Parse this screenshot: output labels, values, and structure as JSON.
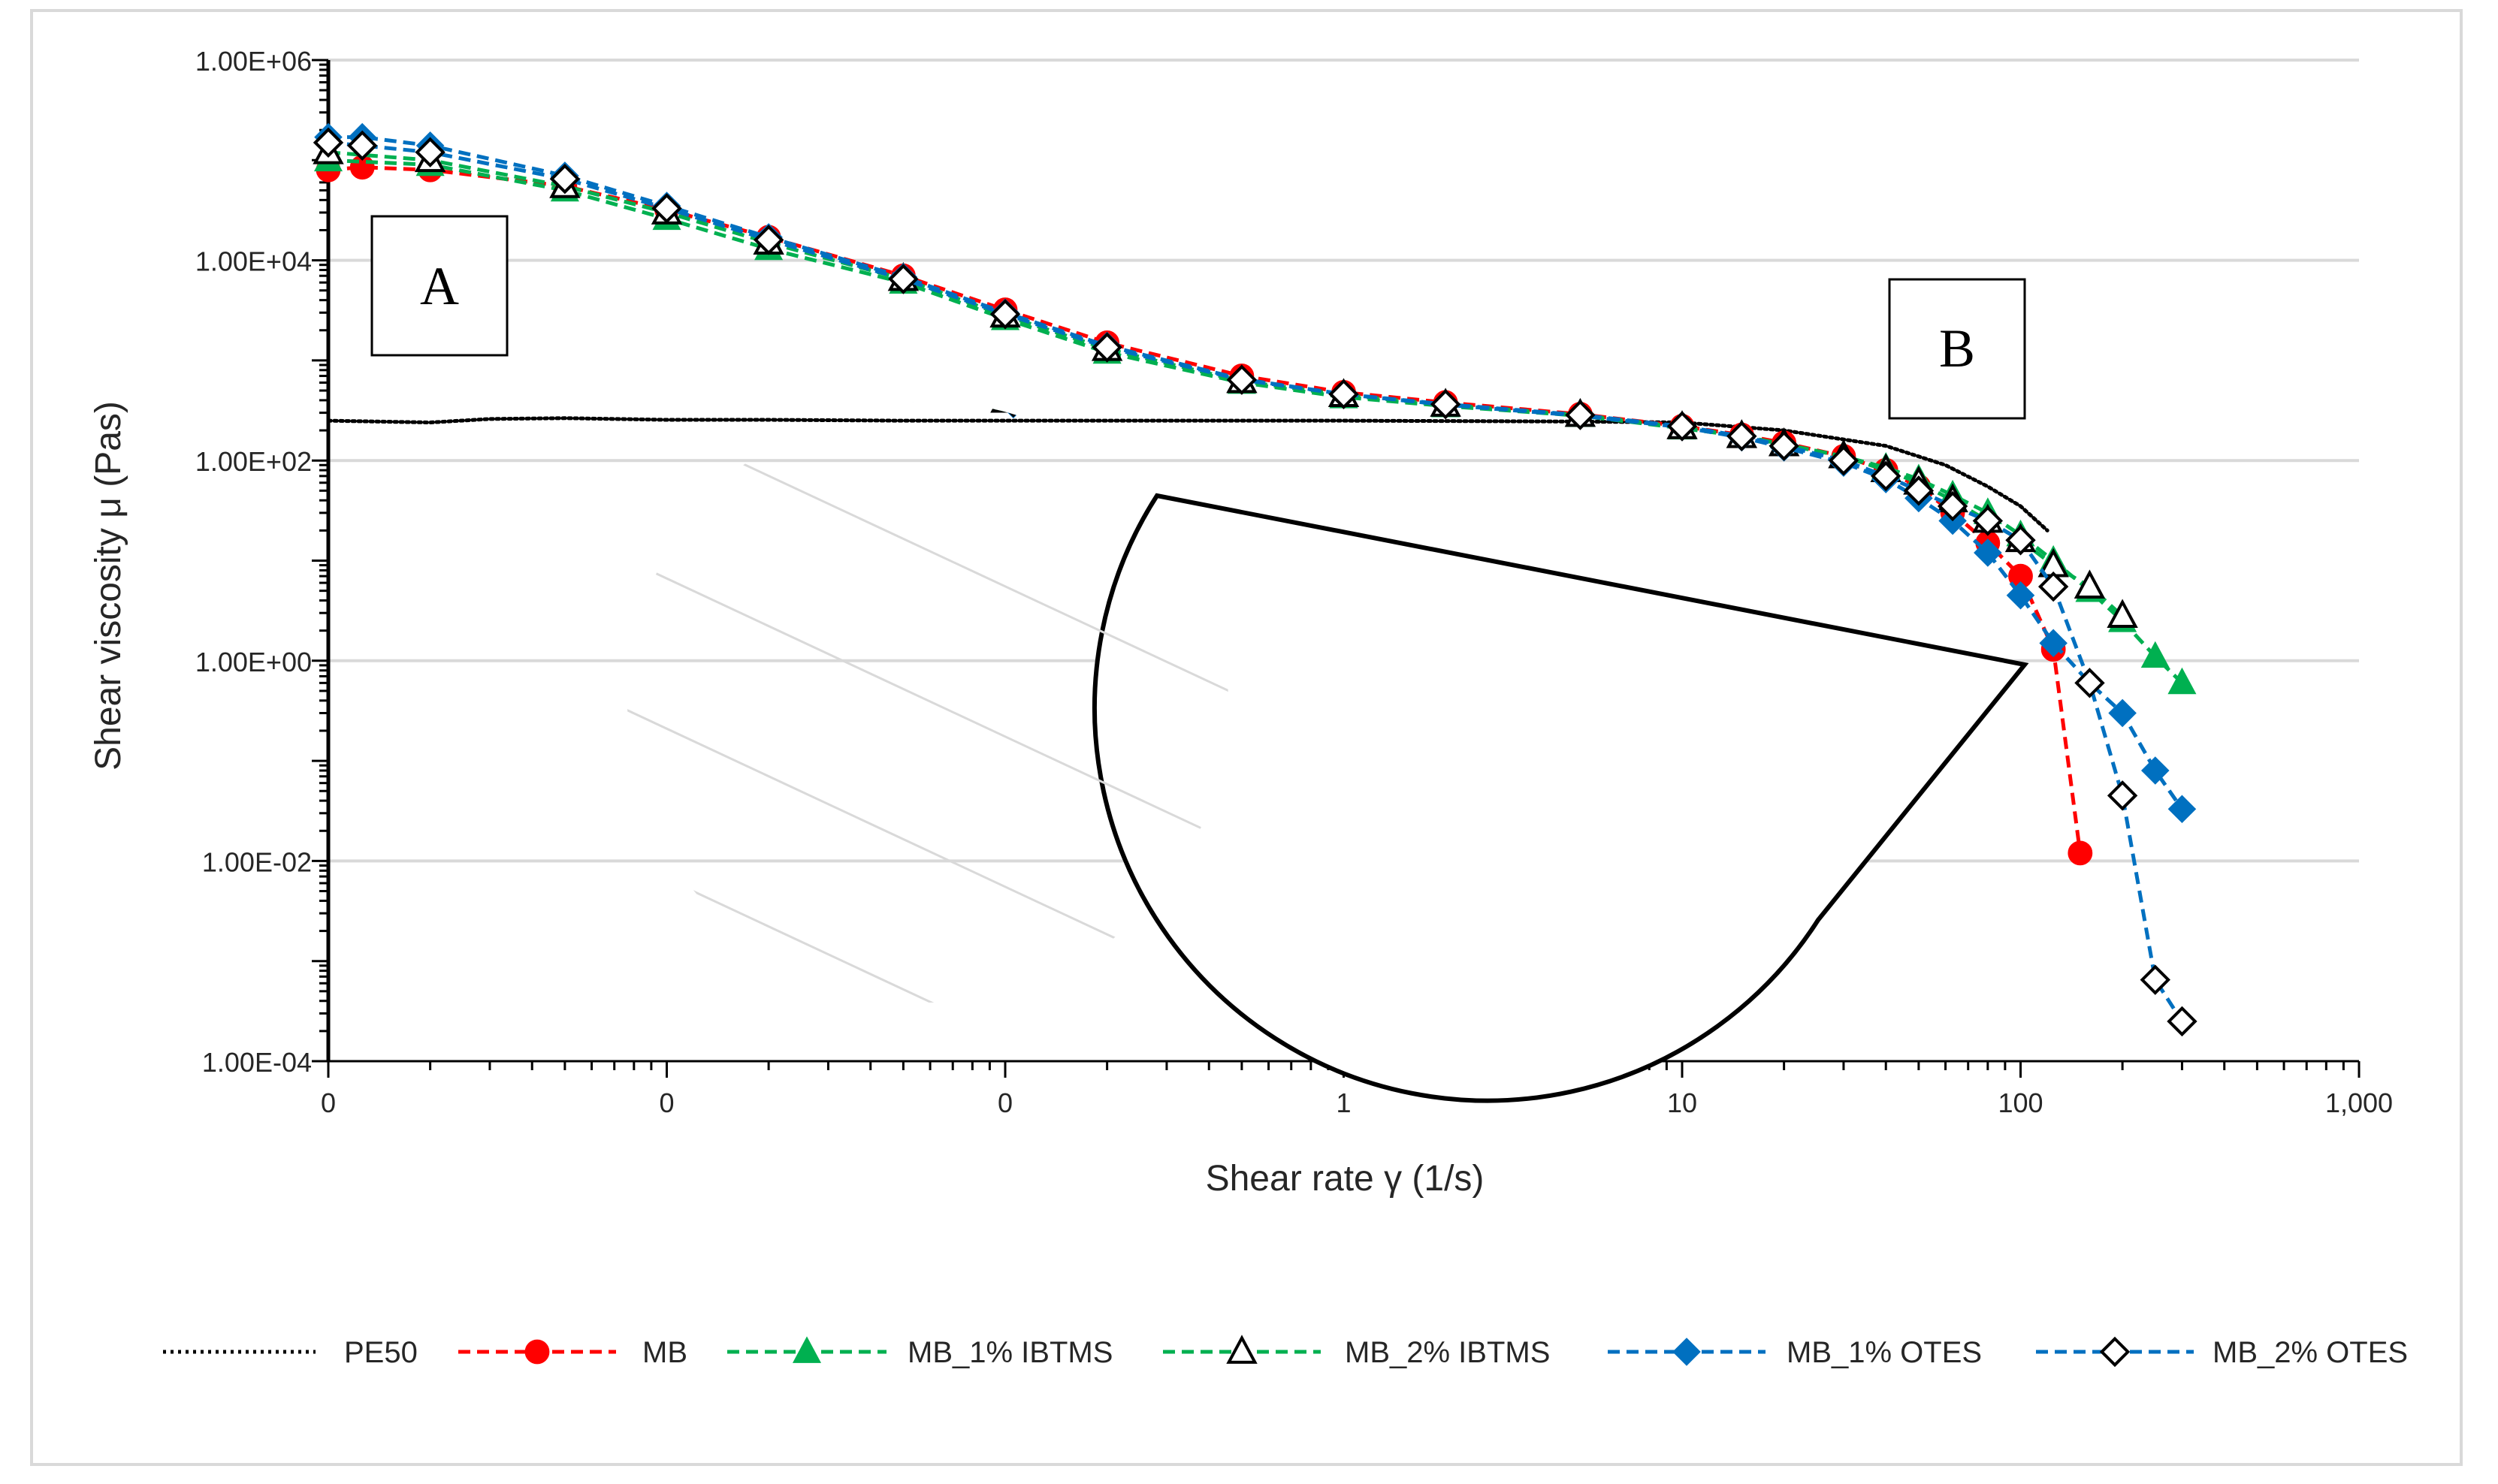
{
  "chart_data": {
    "type": "line",
    "title": "",
    "xlabel": "Shear rate γ (1/s)",
    "ylabel": "Shear viscosity μ (Pas)",
    "x_scale": "log",
    "y_scale": "log",
    "xlim": [
      0.001,
      1000
    ],
    "ylim": [
      0.0001,
      1000000
    ],
    "x_tick_labels": [
      "0",
      "0",
      "0",
      "1",
      "10",
      "100",
      "1,000"
    ],
    "y_tick_labels": [
      "1.00E-04",
      "1.00E-02",
      "1.00E+00",
      "1.00E+02",
      "1.00E+04",
      "1.00E+06"
    ],
    "annotations": [
      "A",
      "B"
    ],
    "grid": true,
    "legend_position": "bottom",
    "series": [
      {
        "name": "PE50",
        "color": "#000000",
        "marker": "none",
        "dash": "dot",
        "x": [
          0.001,
          0.002,
          0.003,
          0.005,
          0.01,
          0.02,
          0.05,
          0.1,
          0.2,
          0.5,
          1,
          2,
          5,
          10,
          20,
          40,
          60,
          80,
          100,
          120
        ],
        "y": [
          250,
          240,
          260,
          265,
          255,
          255,
          250,
          250,
          250,
          250,
          250,
          248,
          245,
          240,
          200,
          140,
          90,
          55,
          35,
          20
        ]
      },
      {
        "name": "MB",
        "color": "#ff0000",
        "marker": "circle",
        "dash": "dash",
        "x": [
          0.001,
          0.00126,
          0.002,
          0.005,
          0.01,
          0.02,
          0.05,
          0.1,
          0.2,
          0.5,
          1,
          2,
          5,
          10,
          15,
          20,
          30,
          40,
          50,
          63,
          80,
          100,
          125,
          150
        ],
        "y": [
          80000,
          85000,
          80000,
          55000,
          32000,
          17000,
          7000,
          3200,
          1500,
          700,
          480,
          380,
          290,
          220,
          180,
          150,
          110,
          80,
          55,
          30,
          15,
          7,
          1.3,
          0.012
        ]
      },
      {
        "name": "MB_1% IBTMS",
        "color": "#00b050",
        "marker": "triangle",
        "dash": "dash",
        "x": [
          0.001,
          0.002,
          0.005,
          0.01,
          0.02,
          0.05,
          0.1,
          0.2,
          0.5,
          1,
          2,
          5,
          10,
          15,
          20,
          30,
          40,
          50,
          63,
          80,
          100,
          125,
          160,
          200,
          250,
          300
        ],
        "y": [
          100000,
          90000,
          50000,
          26000,
          13000,
          6000,
          2600,
          1200,
          600,
          430,
          350,
          280,
          210,
          175,
          145,
          110,
          85,
          65,
          45,
          30,
          18,
          10,
          5,
          2.5,
          1.1,
          0.6
        ]
      },
      {
        "name": "MB_2% IBTMS",
        "color": "#00b050",
        "marker": "triangle-open",
        "dash": "dash",
        "x": [
          0.001,
          0.002,
          0.005,
          0.01,
          0.02,
          0.05,
          0.1,
          0.2,
          0.5,
          1,
          2,
          5,
          10,
          15,
          20,
          30,
          40,
          50,
          63,
          80,
          100,
          125,
          160,
          200
        ],
        "y": [
          120000,
          100000,
          55000,
          30000,
          15000,
          6500,
          2800,
          1300,
          620,
          450,
          360,
          285,
          215,
          175,
          145,
          110,
          80,
          60,
          40,
          25,
          16,
          9,
          5.5,
          2.8
        ]
      },
      {
        "name": "MB_1% OTES",
        "color": "#0070c0",
        "marker": "diamond",
        "dash": "dash",
        "x": [
          0.001,
          0.00126,
          0.002,
          0.005,
          0.01,
          0.02,
          0.05,
          0.1,
          0.2,
          0.5,
          1,
          2,
          5,
          10,
          15,
          20,
          30,
          40,
          50,
          63,
          80,
          100,
          125,
          160,
          200,
          250,
          300
        ],
        "y": [
          170000,
          170000,
          140000,
          70000,
          35000,
          17000,
          6800,
          3000,
          1400,
          650,
          460,
          360,
          280,
          215,
          170,
          135,
          95,
          65,
          42,
          25,
          12,
          4.5,
          1.5,
          0.6,
          0.3,
          0.08,
          0.033
        ]
      },
      {
        "name": "MB_2% OTES",
        "color": "#0070c0",
        "marker": "diamond-open",
        "dash": "dash",
        "x": [
          0.001,
          0.00126,
          0.002,
          0.005,
          0.01,
          0.02,
          0.05,
          0.1,
          0.2,
          0.5,
          1,
          2,
          5,
          10,
          15,
          20,
          30,
          40,
          50,
          63,
          80,
          100,
          125,
          160,
          200,
          250,
          300
        ],
        "y": [
          150000,
          140000,
          120000,
          65000,
          33000,
          16000,
          6500,
          2900,
          1350,
          640,
          460,
          365,
          285,
          220,
          175,
          140,
          100,
          70,
          50,
          35,
          25,
          16,
          5.5,
          0.6,
          0.045,
          0.00065,
          0.00025
        ]
      }
    ]
  }
}
